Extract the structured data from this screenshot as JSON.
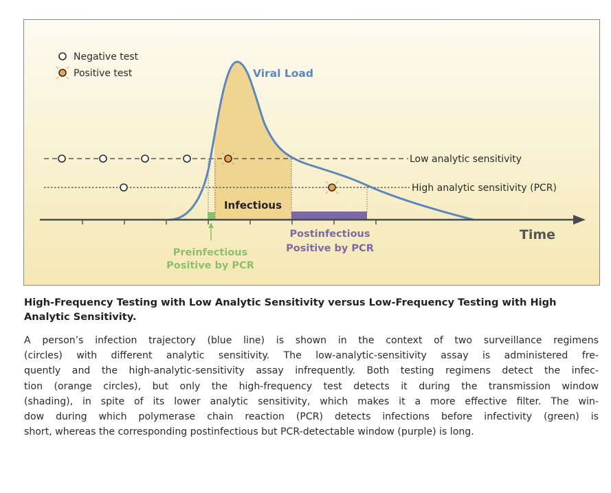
{
  "figure": {
    "legend": {
      "negative": "Negative test",
      "positive": "Positive test"
    },
    "labels": {
      "viral_load": "Viral Load",
      "low_sensitivity": "Low analytic sensitivity",
      "high_sensitivity": "High analytic sensitivity (PCR)",
      "infectious": "Infectious",
      "time": "Time",
      "preinfectious_1": "Preinfectious",
      "preinfectious_2": "Positive by PCR",
      "postinfectious_1": "Postinfectious",
      "postinfectious_2": "Positive by PCR"
    },
    "colors": {
      "curve": "#5b86be",
      "positive": "#f0a34a",
      "green": "#8dc06c",
      "purple": "#7b69a4",
      "panel_top": "#fdfbf1",
      "panel_bottom": "#f5e8b4",
      "infectious_fill": "#efd590"
    }
  },
  "caption": {
    "title_lines": [
      "High-Frequency Testing with Low Analytic Sensitivity versus Low-Frequency Testing with High",
      "Analytic Sensitivity."
    ],
    "body_lines": [
      "A person’s infection trajectory (blue line) is shown in the context of two surveillance regimens",
      "(circles) with different analytic sensitivity. The low-analytic-sensitivity assay is administered fre-",
      "quently and the high-analytic-sensitivity assay infrequently. Both testing regimens detect the infec-",
      "tion (orange circles), but only the high-frequency test detects it during the transmission window",
      "(shading), in spite of its lower analytic sensitivity, which makes it a more effective filter. The win-",
      "dow during which polymerase chain reaction (PCR) detects infections before infectivity (green) is",
      "short, whereas the corresponding postinfectious but PCR-detectable window (purple) is long."
    ]
  }
}
